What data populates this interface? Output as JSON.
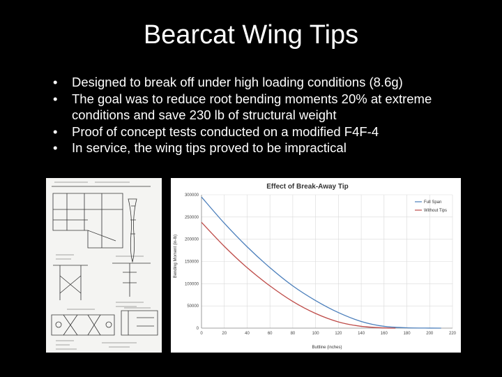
{
  "slide": {
    "title": "Bearcat Wing Tips",
    "bullets": [
      "Designed to break off under high loading conditions (8.6g)",
      "The goal was to reduce root bending moments 20% at extreme conditions and save 230 lb of structural weight",
      "Proof of concept tests conducted on a modified F4F-4",
      "In service, the wing tips proved to be impractical"
    ],
    "bullet_glyph": "•"
  },
  "chart_data": {
    "type": "line",
    "title": "Effect of Break-Away Tip",
    "xlabel": "Buttline (inches)",
    "ylabel": "Bending Moment (in-lb)",
    "xlim": [
      0,
      220
    ],
    "ylim": [
      0,
      300000
    ],
    "xticks": [
      0,
      20,
      40,
      60,
      80,
      100,
      120,
      140,
      160,
      180,
      200,
      220
    ],
    "yticks": [
      0,
      50000,
      100000,
      150000,
      200000,
      250000,
      300000
    ],
    "grid": true,
    "legend_position": "top-right",
    "series": [
      {
        "name": "Full Span",
        "color": "#4a7ebb",
        "x": [
          0,
          20,
          40,
          60,
          80,
          100,
          120,
          140,
          160,
          180,
          200,
          210
        ],
        "y": [
          295000,
          236000,
          183000,
          136000,
          95000,
          62000,
          35000,
          15000,
          4000,
          800,
          100,
          0
        ]
      },
      {
        "name": "Without Tips",
        "color": "#be4b48",
        "x": [
          0,
          20,
          40,
          60,
          80,
          100,
          120,
          140,
          160,
          170
        ],
        "y": [
          238000,
          184000,
          136000,
          95000,
          60000,
          33000,
          14000,
          4000,
          500,
          0
        ]
      }
    ]
  }
}
